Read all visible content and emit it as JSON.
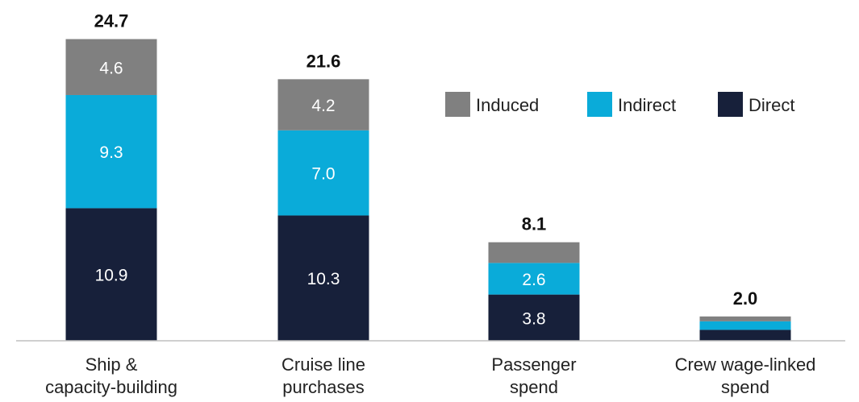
{
  "chart_data": {
    "type": "bar",
    "stacked": true,
    "categories": [
      [
        "Ship &",
        "capacity-building"
      ],
      [
        "Cruise line",
        "purchases"
      ],
      [
        "Passenger",
        "spend"
      ],
      [
        "Crew wage-linked",
        "spend"
      ]
    ],
    "series": [
      {
        "name": "Direct",
        "color": "#17203a",
        "values": [
          10.9,
          10.3,
          3.8,
          0.9
        ]
      },
      {
        "name": "Indirect",
        "color": "#0aabd9",
        "values": [
          9.3,
          7.0,
          2.6,
          0.7
        ]
      },
      {
        "name": "Induced",
        "color": "#808080",
        "values": [
          4.6,
          4.2,
          1.7,
          0.4
        ]
      }
    ],
    "segment_labels": [
      [
        "10.9",
        "9.3",
        "4.6"
      ],
      [
        "10.3",
        "7.0",
        "4.2"
      ],
      [
        "3.8",
        "2.6",
        ""
      ],
      [
        "",
        "",
        ""
      ]
    ],
    "totals": [
      "24.7",
      "21.6",
      "8.1",
      "2.0"
    ],
    "legend": {
      "placement": "top-right",
      "order": [
        "Induced",
        "Indirect",
        "Direct"
      ]
    },
    "ylim": [
      0,
      25
    ],
    "grid": false,
    "title": "",
    "xlabel": "",
    "ylabel": ""
  }
}
